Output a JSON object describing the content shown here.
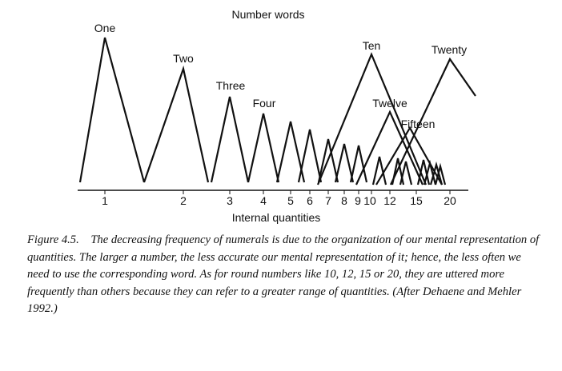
{
  "figure": {
    "title": "Number words",
    "xlabel": "Internal quantities",
    "word_labels": [
      "One",
      "Two",
      "Three",
      "Four",
      "Ten",
      "Twelve",
      "Fifteen",
      "Twenty"
    ],
    "tick_labels": [
      "1",
      "2",
      "3",
      "4",
      "5",
      "6",
      "7",
      "8",
      "9",
      "10",
      "12",
      "15",
      "20"
    ],
    "peaks": [
      {
        "quantity": 1,
        "height": 1.0
      },
      {
        "quantity": 2,
        "height": 0.81
      },
      {
        "quantity": 3,
        "height": 0.62
      },
      {
        "quantity": 4,
        "height": 0.48
      },
      {
        "quantity": 5,
        "height": 0.45
      },
      {
        "quantity": 6,
        "height": 0.4
      },
      {
        "quantity": 7,
        "height": 0.32
      },
      {
        "quantity": 8,
        "height": 0.3
      },
      {
        "quantity": 9,
        "height": 0.28
      },
      {
        "quantity": 10,
        "height": 0.92
      },
      {
        "quantity": 12,
        "height": 0.6
      },
      {
        "quantity": 15,
        "height": 0.45
      },
      {
        "quantity": 20,
        "height": 0.82
      }
    ]
  },
  "caption": {
    "label": "Figure 4.5.",
    "text": "The decreasing frequency of numerals is due to the organization of our mental representation of quantities. The larger a number, the less accurate our mental representation of it; hence, the less often we need to use the corresponding word. As for round numbers like 10, 12, 15 or 20, they are uttered more frequently than others because they can refer to a greater range of quantities. (After Dehaene and Mehler 1992.)"
  }
}
